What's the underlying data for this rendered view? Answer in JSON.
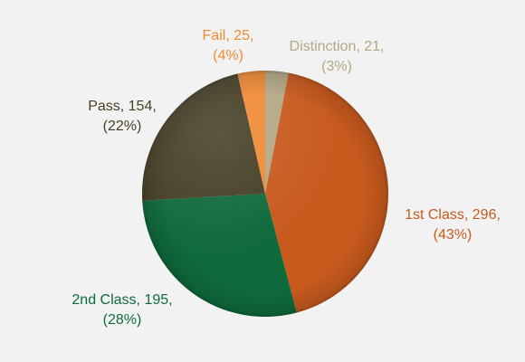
{
  "chart_data": {
    "type": "pie",
    "categories": [
      "Distinction",
      "1st Class",
      "2nd Class",
      "Pass",
      "Fail"
    ],
    "values": [
      21,
      296,
      195,
      154,
      25
    ],
    "labels": [
      "Distinction, 21,",
      "1st Class, 296,",
      "2nd Class, 195,",
      "Pass, 154,",
      "Fail, 25,"
    ],
    "percent_labels": [
      "(3%)",
      "(43%)",
      "(28%)",
      "(22%)",
      "(4%)"
    ],
    "colors": [
      "#b3a886",
      "#c85a1e",
      "#0f6a3c",
      "#463f26",
      "#f08a35"
    ]
  }
}
